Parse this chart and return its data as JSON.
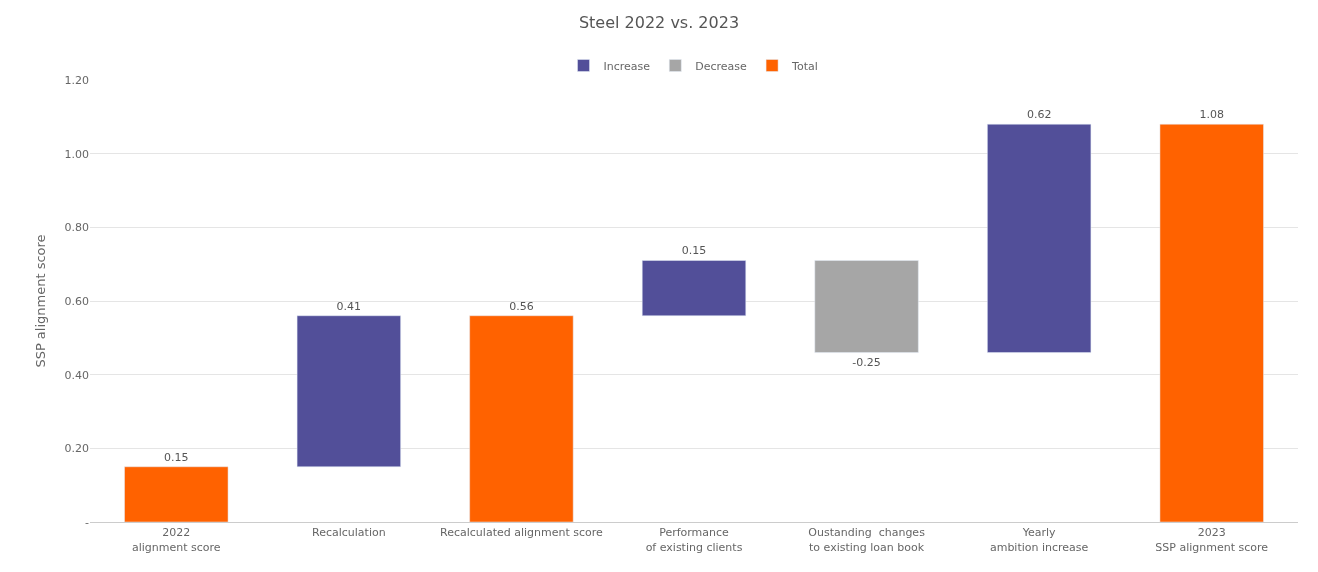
{
  "chart_data": {
    "type": "bar",
    "title": "Steel 2022 vs. 2023",
    "ylabel": "SSP alignment score",
    "categories": [
      "2022\nalignment score",
      "Recalculation",
      "Recalculated alignment score",
      "Performance\nof existing clients",
      "Oustanding  changes\nto existing loan book",
      "Yearly\nambition increase",
      "2023\nSSP alignment score"
    ],
    "series": [
      {
        "name": "Increase",
        "color": "#524f99",
        "values": [
          null,
          0.41,
          null,
          0.15,
          null,
          0.62,
          null
        ],
        "base": [
          null,
          0.15,
          null,
          0.56,
          null,
          0.46,
          null
        ]
      },
      {
        "name": "Decrease",
        "color": "#a6a6a6",
        "values": [
          null,
          null,
          null,
          null,
          -0.25,
          null,
          null
        ],
        "base": [
          null,
          null,
          null,
          null,
          0.71,
          null,
          null
        ]
      },
      {
        "name": "Total",
        "color": "#ff6200",
        "values": [
          0.15,
          null,
          0.56,
          null,
          null,
          null,
          1.08
        ],
        "base": [
          0,
          null,
          0,
          null,
          null,
          null,
          0
        ]
      }
    ],
    "ylim": [
      0,
      1.2
    ],
    "yticks": [
      {
        "value": 0,
        "label": "-"
      },
      {
        "value": 0.2,
        "label": "0.20"
      },
      {
        "value": 0.4,
        "label": "0.40"
      },
      {
        "value": 0.6,
        "label": "0.60"
      },
      {
        "value": 0.8,
        "label": "0.80"
      },
      {
        "value": 1.0,
        "label": "1.00"
      },
      {
        "value": 1.2,
        "label": "1.20"
      }
    ],
    "data_labels": true,
    "grid": "y",
    "legend": "top"
  }
}
